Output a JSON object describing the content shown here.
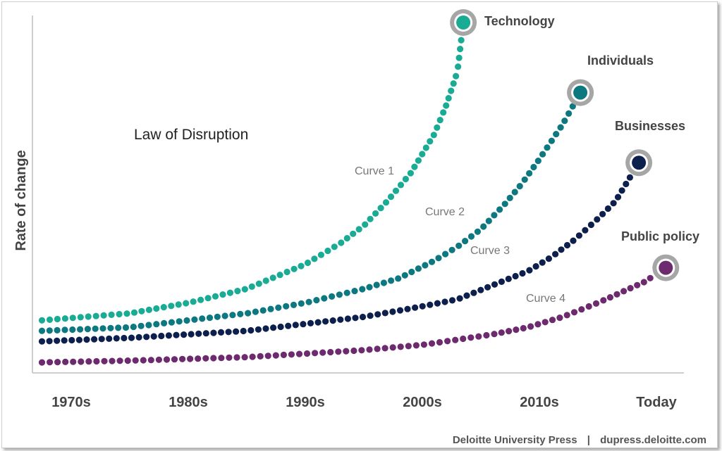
{
  "chart_data": {
    "type": "scatter",
    "title": "Law of Disruption",
    "ylabel": "Rate of change",
    "xlabel": "",
    "categories": [
      "1970s",
      "1980s",
      "1990s",
      "2000s",
      "2010s",
      "Today"
    ],
    "grid": false,
    "series": [
      {
        "name": "Technology",
        "curve_label": "Curve 1",
        "color": "#1aab94",
        "x": [
          1967.5,
          1975,
          1980,
          1985,
          1990,
          1993,
          1995,
          1997,
          1999,
          2001,
          2002,
          2003,
          2003.5
        ],
        "y": [
          0.15,
          0.17,
          0.2,
          0.24,
          0.31,
          0.37,
          0.42,
          0.49,
          0.57,
          0.68,
          0.76,
          0.86,
          1.0
        ]
      },
      {
        "name": "Individuals",
        "curve_label": "Curve 2",
        "color": "#0d7880",
        "x": [
          1967.5,
          1975,
          1980,
          1985,
          1990,
          1995,
          1998,
          2001,
          2003,
          2005,
          2007,
          2008.5,
          2010,
          2011,
          2012,
          2013.5
        ],
        "y": [
          0.12,
          0.13,
          0.15,
          0.17,
          0.2,
          0.24,
          0.27,
          0.32,
          0.36,
          0.41,
          0.48,
          0.54,
          0.61,
          0.66,
          0.71,
          0.8
        ]
      },
      {
        "name": "Businesses",
        "curve_label": "Curve 3",
        "color": "#0c1f4d",
        "x": [
          1967.5,
          1975,
          1980,
          1985,
          1990,
          1995,
          2000,
          2003,
          2006,
          2009,
          2011,
          2013,
          2015,
          2016.5,
          2018.5
        ],
        "y": [
          0.09,
          0.1,
          0.11,
          0.12,
          0.14,
          0.16,
          0.19,
          0.21,
          0.25,
          0.29,
          0.33,
          0.38,
          0.44,
          0.49,
          0.6
        ]
      },
      {
        "name": "Public policy",
        "curve_label": "Curve 4",
        "color": "#6e2a6e",
        "x": [
          1967.5,
          1975,
          1980,
          1985,
          1990,
          1995,
          2000,
          2003,
          2006,
          2009,
          2012,
          2015,
          2017,
          2019,
          2020.8
        ],
        "y": [
          0.03,
          0.035,
          0.04,
          0.045,
          0.055,
          0.065,
          0.08,
          0.095,
          0.11,
          0.13,
          0.16,
          0.2,
          0.23,
          0.26,
          0.3
        ]
      }
    ]
  },
  "footer": {
    "source": "Deloitte University Press",
    "separator": "|",
    "url": "dupress.deloitte.com"
  }
}
